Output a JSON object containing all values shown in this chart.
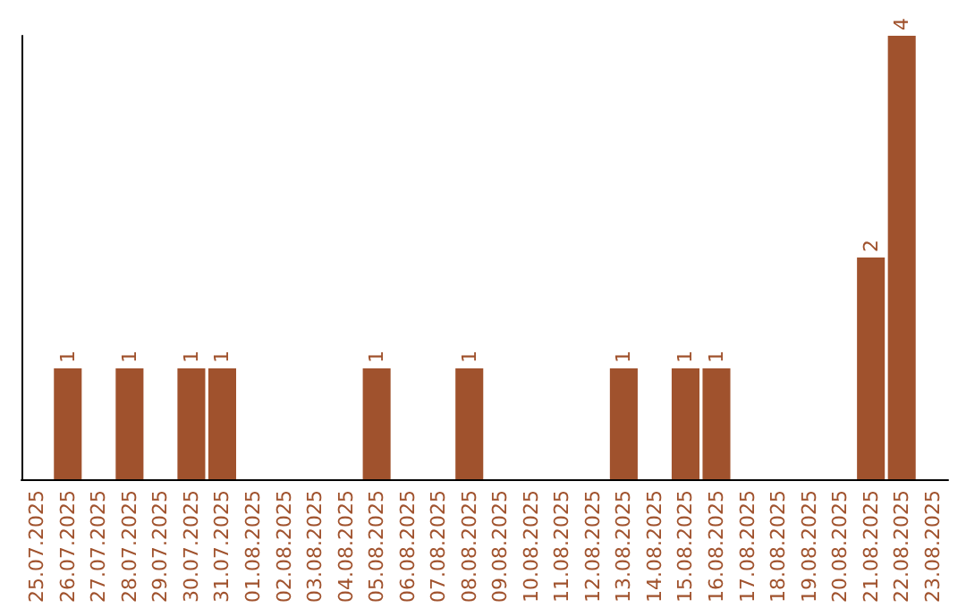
{
  "chart_data": {
    "type": "bar",
    "categories": [
      "25.07.2025",
      "26.07.2025",
      "27.07.2025",
      "28.07.2025",
      "29.07.2025",
      "30.07.2025",
      "31.07.2025",
      "01.08.2025",
      "02.08.2025",
      "03.08.2025",
      "04.08.2025",
      "05.08.2025",
      "06.08.2025",
      "07.08.2025",
      "08.08.2025",
      "09.08.2025",
      "10.08.2025",
      "11.08.2025",
      "12.08.2025",
      "13.08.2025",
      "14.08.2025",
      "15.08.2025",
      "16.08.2025",
      "17.08.2025",
      "18.08.2025",
      "19.08.2025",
      "20.08.2025",
      "21.08.2025",
      "22.08.2025",
      "23.08.2025"
    ],
    "values": [
      0,
      1,
      0,
      1,
      0,
      1,
      1,
      0,
      0,
      0,
      0,
      1,
      0,
      0,
      1,
      0,
      0,
      0,
      0,
      1,
      0,
      1,
      1,
      0,
      0,
      0,
      0,
      2,
      4,
      0
    ],
    "value_labels": [
      null,
      "1",
      null,
      "1",
      null,
      "1",
      "1",
      null,
      null,
      null,
      null,
      "1",
      null,
      null,
      "1",
      null,
      null,
      null,
      null,
      "1",
      null,
      "1",
      "1",
      null,
      null,
      null,
      null,
      "2",
      "4",
      null
    ],
    "color": "#a0522d",
    "grid": false,
    "tick_labels": "x"
  }
}
